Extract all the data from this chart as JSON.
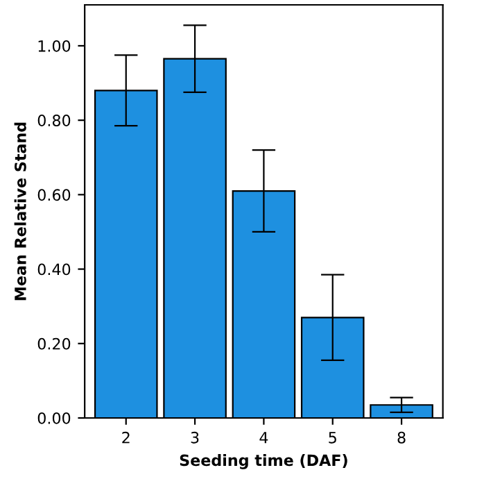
{
  "chart_data": {
    "type": "bar",
    "xlabel": "Seeding time (DAF)",
    "ylabel": "Mean Relative Stand",
    "categories": [
      "2",
      "3",
      "4",
      "5",
      "8"
    ],
    "values": [
      0.88,
      0.965,
      0.61,
      0.27,
      0.035
    ],
    "errors": [
      0.095,
      0.09,
      0.11,
      0.115,
      0.02
    ],
    "color": "#1e90e0",
    "ylim": [
      0,
      1.11
    ],
    "yticks": [
      {
        "value": 0,
        "label": "0.00"
      },
      {
        "value": 0.2,
        "label": "0.20"
      },
      {
        "value": 0.4,
        "label": "0.40"
      },
      {
        "value": 0.6,
        "label": "0.60"
      },
      {
        "value": 0.8,
        "label": "0.80"
      },
      {
        "value": 1.0,
        "label": "1.00"
      }
    ],
    "grid": false
  }
}
